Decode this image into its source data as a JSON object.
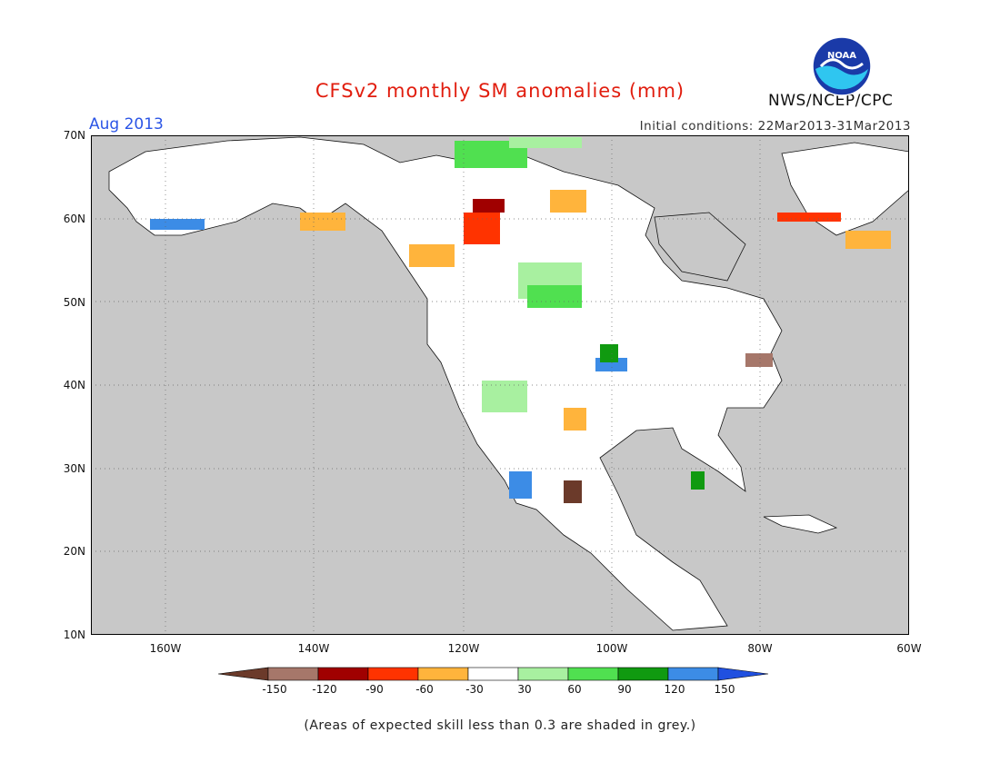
{
  "header": {
    "title": "CFSv2 monthly SM anomalies (mm)",
    "month": "Aug 2013",
    "initial_conditions": "Initial conditions: 22Mar2013-31Mar2013",
    "agency": "NWS/NCEP/CPC",
    "logo_text": "NOAA"
  },
  "map": {
    "extent": {
      "lon_min": -170,
      "lon_max": -60,
      "lat_min": 10,
      "lat_max": 70
    },
    "lat_labels": [
      "70N",
      "60N",
      "50N",
      "40N",
      "30N",
      "20N",
      "10N"
    ],
    "lon_labels": [
      "160W",
      "140W",
      "120W",
      "100W",
      "80W",
      "60W"
    ],
    "mask_color": "#c8c8c8",
    "land_color": "#ffffff",
    "gridlines": "dotted"
  },
  "colorbar": {
    "labels": [
      "-150",
      "-120",
      "-90",
      "-60",
      "-30",
      "30",
      "60",
      "90",
      "120",
      "150"
    ],
    "colors": [
      "#6b3a2a",
      "#a6776a",
      "#a00000",
      "#ff3300",
      "#ffb43c",
      "#ffffff",
      "#a8f0a0",
      "#50e050",
      "#109a10",
      "#3c8ce6",
      "#2050e0"
    ]
  },
  "footnote": "(Areas of expected skill less than 0.3 are shaded in grey.)"
}
